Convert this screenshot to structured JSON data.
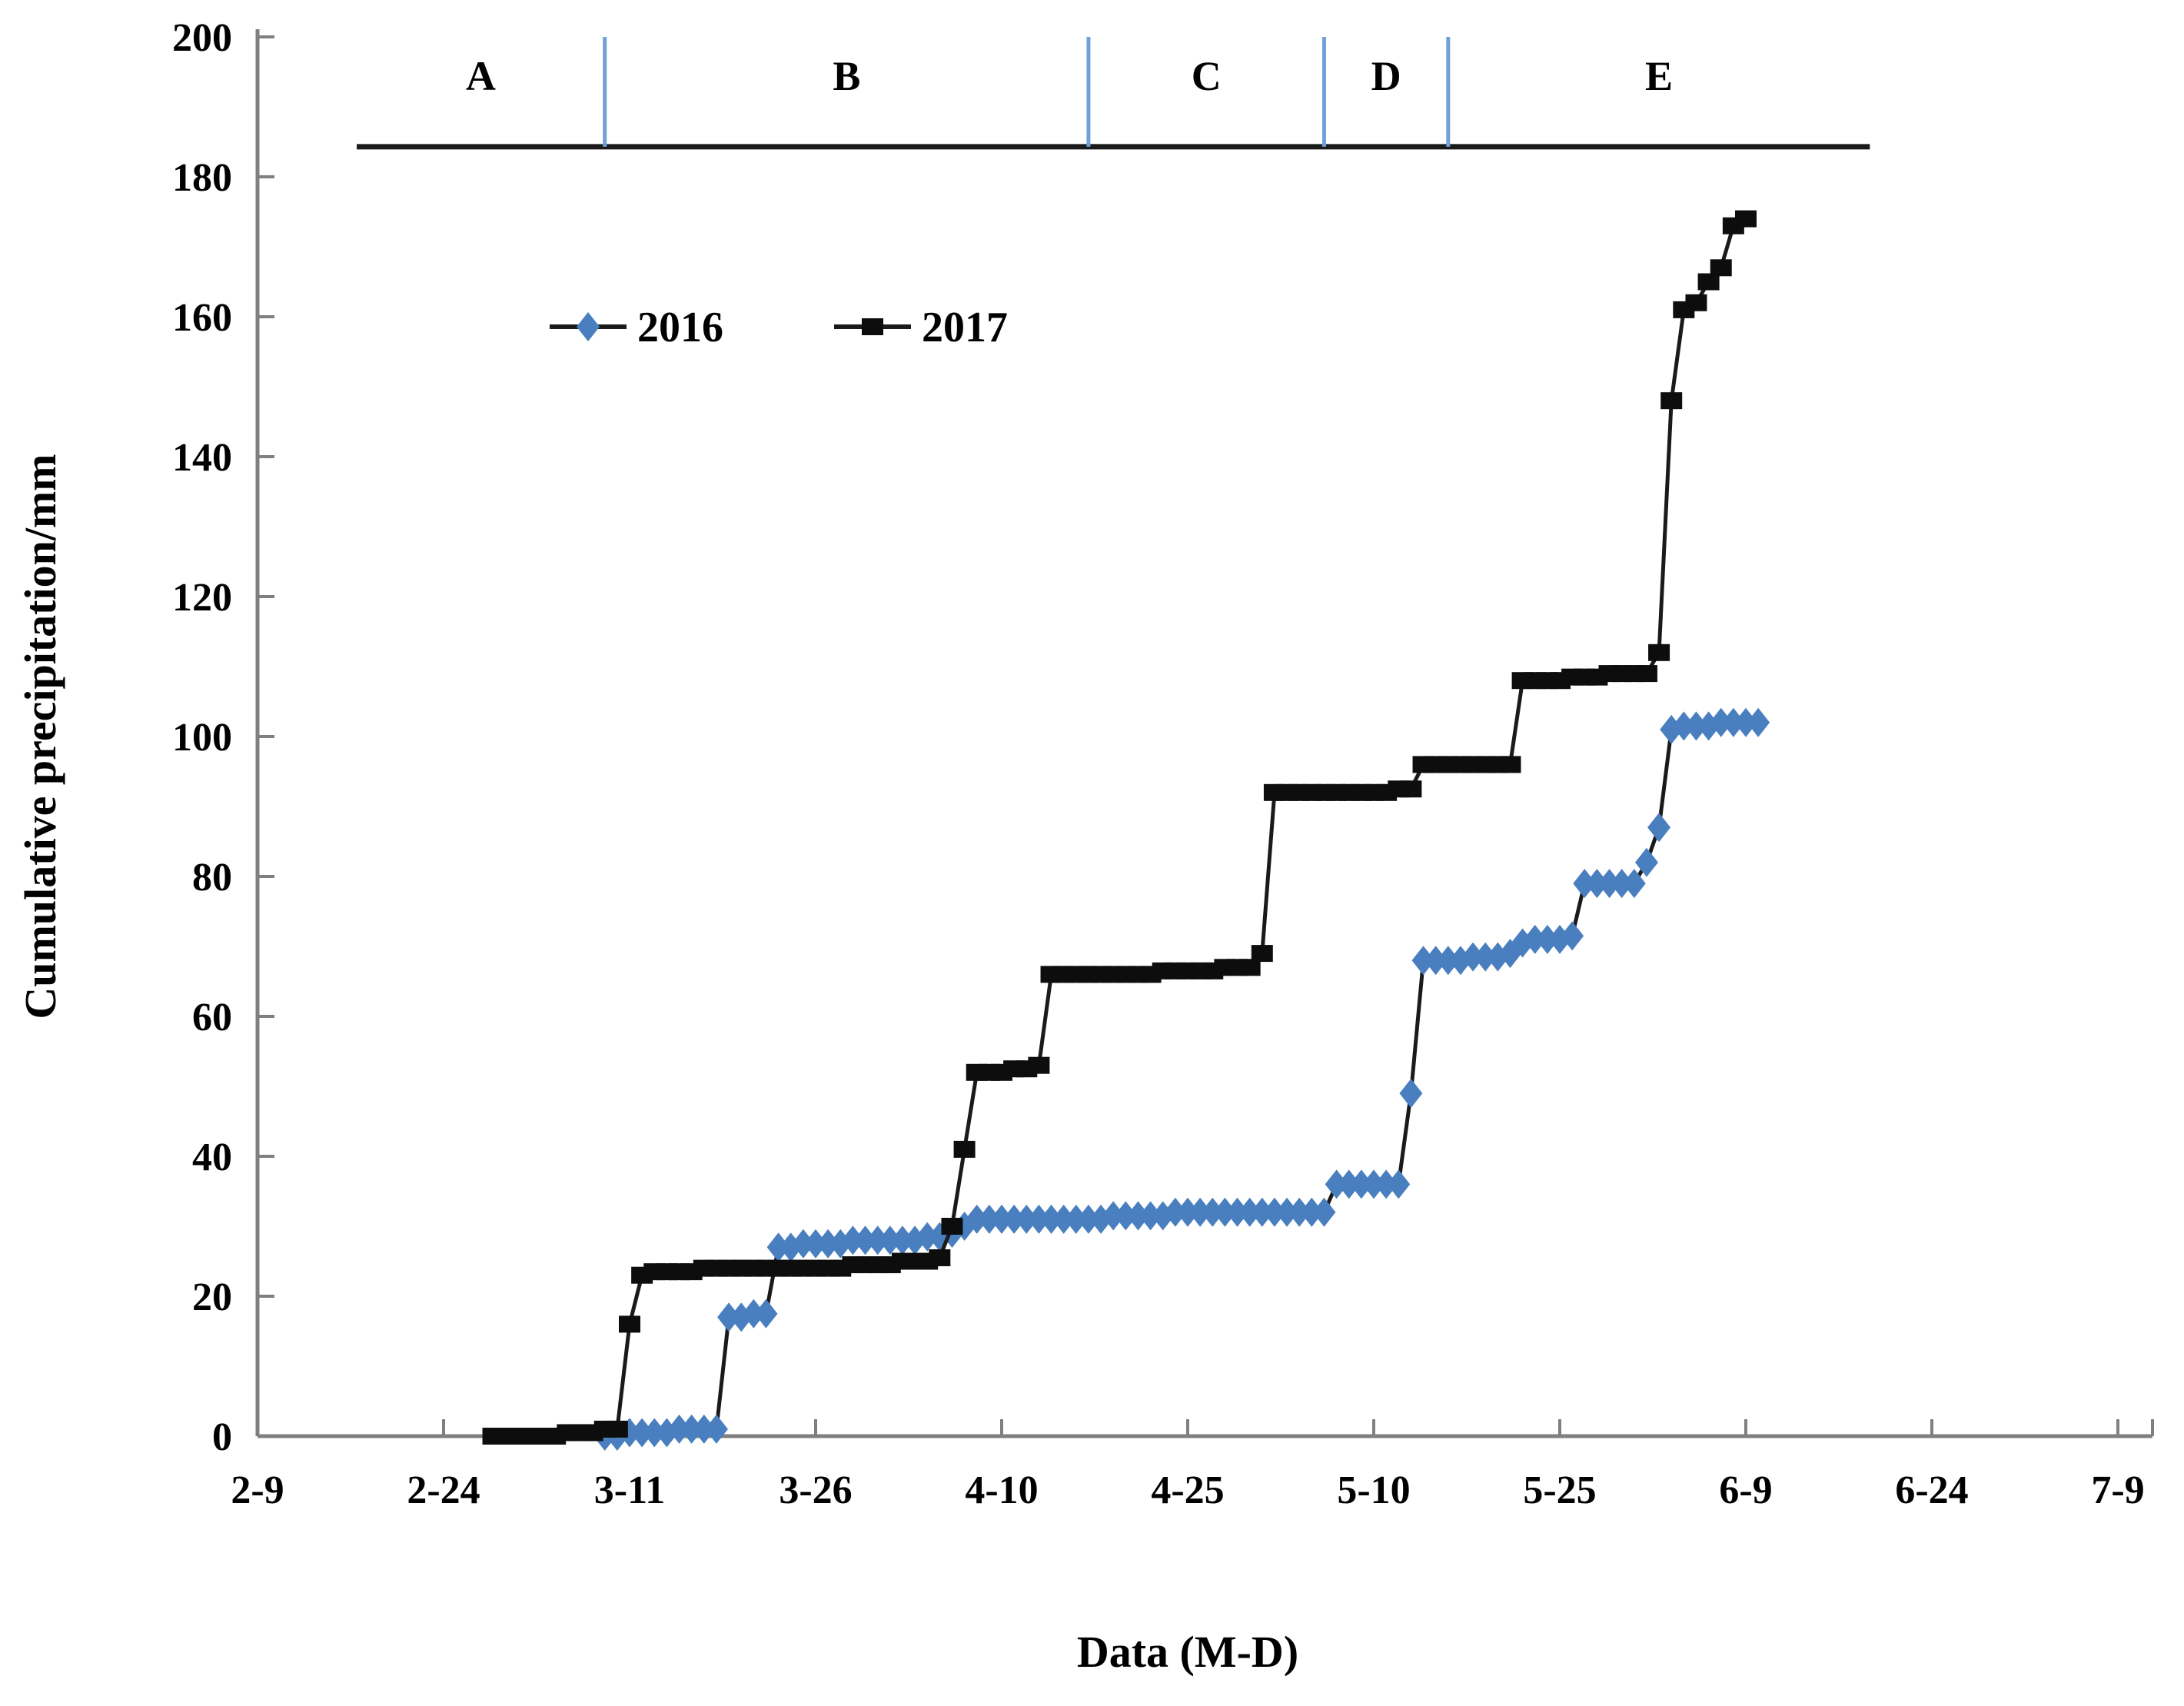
{
  "figure": {
    "background": "#ffffff",
    "axis_color": "#7f7f7f",
    "text_color": "#000000"
  },
  "chart_data": {
    "type": "line",
    "title": "",
    "xlabel": "Data (M-D)",
    "ylabel": "Cumulative precipitation/mm",
    "x_ticks": [
      "2-9",
      "2-24",
      "3-11",
      "3-26",
      "4-10",
      "4-25",
      "5-10",
      "5-25",
      "6-9",
      "6-24",
      "7-9"
    ],
    "x_days_between_ticks": 15,
    "y_ticks": [
      0,
      20,
      40,
      60,
      80,
      100,
      120,
      140,
      160,
      180,
      200
    ],
    "ylim": [
      0,
      200
    ],
    "grid": false,
    "legend": {
      "position": "inside-upper-left",
      "items": [
        "2016",
        "2017"
      ]
    },
    "series": [
      {
        "name": "2016",
        "marker": "diamond",
        "marker_color": "#4a7fbf",
        "line_color": "#1a1a1a",
        "points": [
          [
            "3-9",
            0
          ],
          [
            "3-10",
            0
          ],
          [
            "3-11",
            0.5
          ],
          [
            "3-12",
            0.5
          ],
          [
            "3-13",
            0.5
          ],
          [
            "3-14",
            0.5
          ],
          [
            "3-15",
            1
          ],
          [
            "3-16",
            1
          ],
          [
            "3-17",
            1
          ],
          [
            "3-18",
            1
          ],
          [
            "3-19",
            17
          ],
          [
            "3-20",
            17
          ],
          [
            "3-21",
            17.5
          ],
          [
            "3-22",
            17.5
          ],
          [
            "3-23",
            27
          ],
          [
            "3-24",
            27
          ],
          [
            "3-25",
            27.5
          ],
          [
            "3-26",
            27.5
          ],
          [
            "3-27",
            27.5
          ],
          [
            "3-28",
            27.5
          ],
          [
            "3-29",
            28
          ],
          [
            "3-30",
            28
          ],
          [
            "3-31",
            28
          ],
          [
            "4-1",
            28
          ],
          [
            "4-2",
            28
          ],
          [
            "4-3",
            28
          ],
          [
            "4-4",
            28.5
          ],
          [
            "4-5",
            28.5
          ],
          [
            "4-6",
            29
          ],
          [
            "4-7",
            30
          ],
          [
            "4-8",
            31
          ],
          [
            "4-9",
            31
          ],
          [
            "4-10",
            31
          ],
          [
            "4-11",
            31
          ],
          [
            "4-12",
            31
          ],
          [
            "4-13",
            31
          ],
          [
            "4-14",
            31
          ],
          [
            "4-15",
            31
          ],
          [
            "4-16",
            31
          ],
          [
            "4-17",
            31
          ],
          [
            "4-18",
            31
          ],
          [
            "4-19",
            31.5
          ],
          [
            "4-20",
            31.5
          ],
          [
            "4-21",
            31.5
          ],
          [
            "4-22",
            31.5
          ],
          [
            "4-23",
            31.5
          ],
          [
            "4-24",
            32
          ],
          [
            "4-25",
            32
          ],
          [
            "4-26",
            32
          ],
          [
            "4-27",
            32
          ],
          [
            "4-28",
            32
          ],
          [
            "4-29",
            32
          ],
          [
            "4-30",
            32
          ],
          [
            "5-1",
            32
          ],
          [
            "5-2",
            32
          ],
          [
            "5-3",
            32
          ],
          [
            "5-4",
            32
          ],
          [
            "5-5",
            32
          ],
          [
            "5-6",
            32
          ],
          [
            "5-7",
            36
          ],
          [
            "5-8",
            36
          ],
          [
            "5-9",
            36
          ],
          [
            "5-10",
            36
          ],
          [
            "5-11",
            36
          ],
          [
            "5-12",
            36
          ],
          [
            "5-13",
            49
          ],
          [
            "5-14",
            68
          ],
          [
            "5-15",
            68
          ],
          [
            "5-16",
            68
          ],
          [
            "5-17",
            68
          ],
          [
            "5-18",
            68.5
          ],
          [
            "5-19",
            68.5
          ],
          [
            "5-20",
            68.5
          ],
          [
            "5-21",
            69
          ],
          [
            "5-22",
            70.5
          ],
          [
            "5-23",
            71
          ],
          [
            "5-24",
            71
          ],
          [
            "5-25",
            71
          ],
          [
            "5-26",
            71.5
          ],
          [
            "5-27",
            79
          ],
          [
            "5-28",
            79
          ],
          [
            "5-29",
            79
          ],
          [
            "5-30",
            79
          ],
          [
            "5-31",
            79
          ],
          [
            "6-1",
            82
          ],
          [
            "6-2",
            87
          ],
          [
            "6-3",
            101
          ],
          [
            "6-4",
            101.5
          ],
          [
            "6-5",
            101.5
          ],
          [
            "6-6",
            101.5
          ],
          [
            "6-7",
            102
          ],
          [
            "6-8",
            102
          ],
          [
            "6-9",
            102
          ],
          [
            "6-10",
            102
          ]
        ]
      },
      {
        "name": "2017",
        "marker": "square",
        "marker_color": "#0d0d0d",
        "line_color": "#1a1a1a",
        "points": [
          [
            "2-28",
            0
          ],
          [
            "3-1",
            0
          ],
          [
            "3-2",
            0
          ],
          [
            "3-3",
            0
          ],
          [
            "3-4",
            0
          ],
          [
            "3-5",
            0
          ],
          [
            "3-6",
            0.5
          ],
          [
            "3-7",
            0.5
          ],
          [
            "3-8",
            0.5
          ],
          [
            "3-9",
            1
          ],
          [
            "3-10",
            1
          ],
          [
            "3-11",
            16
          ],
          [
            "3-12",
            23
          ],
          [
            "3-13",
            23.5
          ],
          [
            "3-14",
            23.5
          ],
          [
            "3-15",
            23.5
          ],
          [
            "3-16",
            23.5
          ],
          [
            "3-17",
            24
          ],
          [
            "3-18",
            24
          ],
          [
            "3-19",
            24
          ],
          [
            "3-20",
            24
          ],
          [
            "3-21",
            24
          ],
          [
            "3-22",
            24
          ],
          [
            "3-23",
            24
          ],
          [
            "3-24",
            24
          ],
          [
            "3-25",
            24
          ],
          [
            "3-26",
            24
          ],
          [
            "3-27",
            24
          ],
          [
            "3-28",
            24
          ],
          [
            "3-29",
            24.5
          ],
          [
            "3-30",
            24.5
          ],
          [
            "3-31",
            24.5
          ],
          [
            "4-1",
            24.5
          ],
          [
            "4-2",
            25
          ],
          [
            "4-3",
            25
          ],
          [
            "4-4",
            25
          ],
          [
            "4-5",
            25.5
          ],
          [
            "4-6",
            30
          ],
          [
            "4-7",
            41
          ],
          [
            "4-8",
            52
          ],
          [
            "4-9",
            52
          ],
          [
            "4-10",
            52
          ],
          [
            "4-11",
            52.5
          ],
          [
            "4-12",
            52.5
          ],
          [
            "4-13",
            53
          ],
          [
            "4-14",
            66
          ],
          [
            "4-15",
            66
          ],
          [
            "4-16",
            66
          ],
          [
            "4-17",
            66
          ],
          [
            "4-18",
            66
          ],
          [
            "4-19",
            66
          ],
          [
            "4-20",
            66
          ],
          [
            "4-21",
            66
          ],
          [
            "4-22",
            66
          ],
          [
            "4-23",
            66.5
          ],
          [
            "4-24",
            66.5
          ],
          [
            "4-25",
            66.5
          ],
          [
            "4-26",
            66.5
          ],
          [
            "4-27",
            66.5
          ],
          [
            "4-28",
            67
          ],
          [
            "4-29",
            67
          ],
          [
            "4-30",
            67
          ],
          [
            "5-1",
            69
          ],
          [
            "5-2",
            92
          ],
          [
            "5-3",
            92
          ],
          [
            "5-4",
            92
          ],
          [
            "5-5",
            92
          ],
          [
            "5-6",
            92
          ],
          [
            "5-7",
            92
          ],
          [
            "5-8",
            92
          ],
          [
            "5-9",
            92
          ],
          [
            "5-10",
            92
          ],
          [
            "5-11",
            92
          ],
          [
            "5-12",
            92.5
          ],
          [
            "5-13",
            92.5
          ],
          [
            "5-14",
            96
          ],
          [
            "5-15",
            96
          ],
          [
            "5-16",
            96
          ],
          [
            "5-17",
            96
          ],
          [
            "5-18",
            96
          ],
          [
            "5-19",
            96
          ],
          [
            "5-20",
            96
          ],
          [
            "5-21",
            96
          ],
          [
            "5-22",
            108
          ],
          [
            "5-23",
            108
          ],
          [
            "5-24",
            108
          ],
          [
            "5-25",
            108
          ],
          [
            "5-26",
            108.5
          ],
          [
            "5-27",
            108.5
          ],
          [
            "5-28",
            108.5
          ],
          [
            "5-29",
            109
          ],
          [
            "5-30",
            109
          ],
          [
            "5-31",
            109
          ],
          [
            "6-1",
            109
          ],
          [
            "6-2",
            112
          ],
          [
            "6-3",
            148
          ],
          [
            "6-4",
            161
          ],
          [
            "6-5",
            162
          ],
          [
            "6-6",
            165
          ],
          [
            "6-7",
            167
          ],
          [
            "6-8",
            173
          ],
          [
            "6-9",
            174
          ]
        ]
      }
    ],
    "annotations": {
      "period_band": {
        "labels": [
          "A",
          "B",
          "C",
          "D",
          "E"
        ],
        "divider_dates": [
          "3-9",
          "4-17",
          "5-6",
          "5-16"
        ],
        "band_start_date": "2-17",
        "band_end_date": "6-19",
        "divider_color": "#6fa0d8",
        "line_color": "#1a1a1a",
        "line_y_value": 184.3,
        "label_y_value": 194.5
      }
    }
  }
}
